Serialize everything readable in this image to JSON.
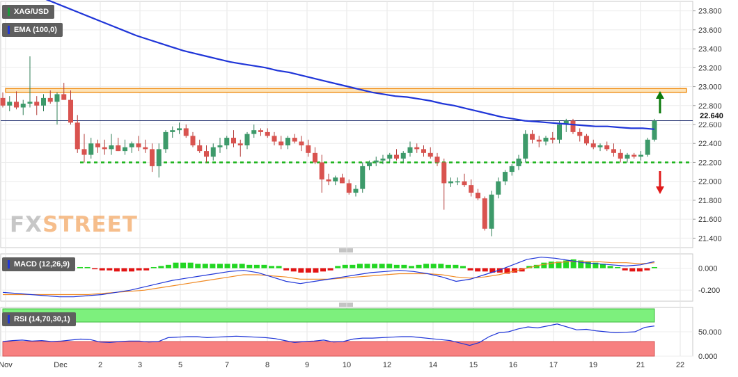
{
  "chart_data": [
    {
      "type": "candlestick",
      "symbol": "XAG/USD",
      "overlay_label": "EMA (100,0)",
      "current_price": "22.640",
      "ylim": [
        21.3,
        23.9
      ],
      "yticks": [
        "23.800",
        "23.600",
        "23.400",
        "23.200",
        "23.000",
        "22.800",
        "22.600",
        "22.400",
        "22.200",
        "22.000",
        "21.800",
        "21.600",
        "21.400"
      ],
      "x_tick_labels": [
        "Nov",
        "Dec",
        "2",
        "3",
        "5",
        "7",
        "8",
        "9",
        "10",
        "12",
        "14",
        "15",
        "16",
        "17",
        "19",
        "21",
        "22"
      ],
      "resistance_zone": [
        22.94,
        22.98
      ],
      "support_level": 22.2,
      "candles": [
        [
          22.88,
          22.94,
          22.78,
          22.8
        ],
        [
          22.8,
          22.9,
          22.74,
          22.84
        ],
        [
          22.84,
          22.95,
          22.76,
          22.78
        ],
        [
          22.78,
          22.86,
          22.7,
          22.82
        ],
        [
          22.82,
          23.32,
          22.78,
          22.84
        ],
        [
          22.84,
          22.9,
          22.7,
          22.8
        ],
        [
          22.8,
          22.92,
          22.74,
          22.88
        ],
        [
          22.88,
          22.96,
          22.82,
          22.84
        ],
        [
          22.84,
          22.94,
          22.6,
          22.92
        ],
        [
          22.92,
          23.04,
          22.86,
          22.86
        ],
        [
          22.86,
          22.96,
          22.6,
          22.62
        ],
        [
          22.62,
          22.7,
          22.3,
          22.34
        ],
        [
          22.34,
          22.5,
          22.2,
          22.28
        ],
        [
          22.28,
          22.46,
          22.24,
          22.4
        ],
        [
          22.4,
          22.44,
          22.3,
          22.36
        ],
        [
          22.36,
          22.44,
          22.28,
          22.34
        ],
        [
          22.34,
          22.5,
          22.28,
          22.38
        ],
        [
          22.38,
          22.46,
          22.32,
          22.32
        ],
        [
          22.32,
          22.44,
          22.28,
          22.36
        ],
        [
          22.36,
          22.42,
          22.3,
          22.4
        ],
        [
          22.4,
          22.48,
          22.32,
          22.36
        ],
        [
          22.36,
          22.44,
          22.3,
          22.34
        ],
        [
          22.34,
          22.4,
          22.1,
          22.16
        ],
        [
          22.16,
          22.4,
          22.04,
          22.34
        ],
        [
          22.34,
          22.54,
          22.3,
          22.52
        ],
        [
          22.52,
          22.58,
          22.46,
          22.54
        ],
        [
          22.54,
          22.62,
          22.5,
          22.56
        ],
        [
          22.56,
          22.6,
          22.46,
          22.48
        ],
        [
          22.48,
          22.52,
          22.36,
          22.38
        ],
        [
          22.38,
          22.44,
          22.3,
          22.32
        ],
        [
          22.32,
          22.38,
          22.2,
          22.26
        ],
        [
          22.26,
          22.4,
          22.22,
          22.36
        ],
        [
          22.36,
          22.46,
          22.3,
          22.38
        ],
        [
          22.38,
          22.48,
          22.34,
          22.46
        ],
        [
          22.46,
          22.54,
          22.36,
          22.4
        ],
        [
          22.4,
          22.44,
          22.26,
          22.38
        ],
        [
          22.38,
          22.52,
          22.34,
          22.5
        ],
        [
          22.5,
          22.6,
          22.46,
          22.54
        ],
        [
          22.54,
          22.56,
          22.48,
          22.52
        ],
        [
          22.52,
          22.56,
          22.46,
          22.48
        ],
        [
          22.48,
          22.52,
          22.38,
          22.42
        ],
        [
          22.42,
          22.48,
          22.34,
          22.38
        ],
        [
          22.38,
          22.48,
          22.34,
          22.46
        ],
        [
          22.46,
          22.5,
          22.4,
          22.42
        ],
        [
          22.42,
          22.48,
          22.32,
          22.38
        ],
        [
          22.38,
          22.44,
          22.26,
          22.3
        ],
        [
          22.3,
          22.36,
          22.18,
          22.2
        ],
        [
          22.2,
          22.28,
          21.88,
          22.02
        ],
        [
          22.02,
          22.08,
          21.96,
          22.0
        ],
        [
          22.0,
          22.06,
          21.96,
          22.04
        ],
        [
          22.04,
          22.08,
          21.98,
          21.98
        ],
        [
          21.98,
          22.02,
          21.86,
          21.88
        ],
        [
          21.88,
          21.96,
          21.84,
          21.92
        ],
        [
          21.92,
          22.2,
          21.88,
          22.16
        ],
        [
          22.16,
          22.22,
          22.12,
          22.2
        ],
        [
          22.2,
          22.26,
          22.16,
          22.22
        ],
        [
          22.22,
          22.28,
          22.18,
          22.24
        ],
        [
          22.24,
          22.3,
          22.2,
          22.28
        ],
        [
          22.28,
          22.34,
          22.22,
          22.24
        ],
        [
          22.24,
          22.32,
          22.2,
          22.3
        ],
        [
          22.3,
          22.42,
          22.26,
          22.36
        ],
        [
          22.36,
          22.4,
          22.3,
          22.34
        ],
        [
          22.34,
          22.38,
          22.26,
          22.3
        ],
        [
          22.3,
          22.36,
          22.24,
          22.26
        ],
        [
          22.26,
          22.3,
          22.16,
          22.2
        ],
        [
          22.2,
          22.24,
          21.7,
          21.98
        ],
        [
          21.98,
          22.04,
          21.94,
          22.0
        ],
        [
          22.0,
          22.04,
          21.96,
          22.0
        ],
        [
          22.0,
          22.08,
          21.94,
          21.96
        ],
        [
          21.96,
          22.02,
          21.84,
          21.88
        ],
        [
          21.88,
          21.92,
          21.8,
          21.82
        ],
        [
          21.82,
          21.84,
          21.48,
          21.5
        ],
        [
          21.5,
          21.9,
          21.42,
          21.86
        ],
        [
          21.86,
          22.04,
          21.82,
          22.0
        ],
        [
          22.0,
          22.12,
          21.96,
          22.1
        ],
        [
          22.1,
          22.18,
          22.06,
          22.16
        ],
        [
          22.16,
          22.28,
          22.12,
          22.24
        ],
        [
          22.24,
          22.54,
          22.2,
          22.5
        ],
        [
          22.5,
          22.54,
          22.4,
          22.44
        ],
        [
          22.44,
          22.48,
          22.36,
          22.42
        ],
        [
          22.42,
          22.48,
          22.38,
          22.46
        ],
        [
          22.46,
          22.52,
          22.4,
          22.44
        ],
        [
          22.44,
          22.64,
          22.4,
          22.6
        ],
        [
          22.6,
          22.66,
          22.52,
          22.64
        ],
        [
          22.64,
          22.66,
          22.5,
          22.52
        ],
        [
          22.52,
          22.56,
          22.42,
          22.48
        ],
        [
          22.48,
          22.5,
          22.38,
          22.4
        ],
        [
          22.4,
          22.44,
          22.34,
          22.36
        ],
        [
          22.36,
          22.4,
          22.32,
          22.38
        ],
        [
          22.38,
          22.42,
          22.32,
          22.34
        ],
        [
          22.34,
          22.4,
          22.26,
          22.3
        ],
        [
          22.3,
          22.34,
          22.2,
          22.24
        ],
        [
          22.24,
          22.3,
          22.2,
          22.28
        ],
        [
          22.28,
          22.3,
          22.24,
          22.26
        ],
        [
          22.26,
          22.32,
          22.22,
          22.28
        ],
        [
          22.28,
          22.46,
          22.26,
          22.44
        ],
        [
          22.44,
          22.66,
          22.42,
          22.64
        ]
      ],
      "ema100": [
        23.94,
        23.89,
        23.84,
        23.79,
        23.74,
        23.69,
        23.64,
        23.59,
        23.54,
        23.5,
        23.46,
        23.42,
        23.38,
        23.35,
        23.32,
        23.29,
        23.26,
        23.24,
        23.22,
        23.2,
        23.17,
        23.15,
        23.12,
        23.09,
        23.06,
        23.03,
        23.0,
        22.97,
        22.94,
        22.92,
        22.9,
        22.89,
        22.87,
        22.85,
        22.82,
        22.8,
        22.77,
        22.74,
        22.71,
        22.68,
        22.66,
        22.64,
        22.63,
        22.62,
        22.61,
        22.6,
        22.59,
        22.58,
        22.58,
        22.57,
        22.56,
        22.56,
        22.55
      ]
    },
    {
      "type": "macd",
      "label": "MACD (12,26,9)",
      "ylim": [
        -0.3,
        0.13
      ],
      "yticks": [
        "0.000",
        "-0.200"
      ],
      "macd": [
        -0.22,
        -0.23,
        -0.24,
        -0.25,
        -0.26,
        -0.26,
        -0.25,
        -0.24,
        -0.22,
        -0.2,
        -0.17,
        -0.14,
        -0.11,
        -0.09,
        -0.07,
        -0.05,
        -0.03,
        -0.02,
        -0.04,
        -0.08,
        -0.12,
        -0.14,
        -0.12,
        -0.1,
        -0.08,
        -0.06,
        -0.04,
        -0.03,
        -0.02,
        -0.03,
        -0.05,
        -0.08,
        -0.12,
        -0.1,
        -0.06,
        -0.02,
        0.03,
        0.08,
        0.1,
        0.09,
        0.07,
        0.05,
        0.04,
        0.03,
        0.02,
        0.03,
        0.06
      ],
      "signal": [
        -0.24,
        -0.24,
        -0.24,
        -0.24,
        -0.24,
        -0.24,
        -0.24,
        -0.23,
        -0.22,
        -0.21,
        -0.2,
        -0.18,
        -0.16,
        -0.14,
        -0.12,
        -0.1,
        -0.08,
        -0.06,
        -0.06,
        -0.07,
        -0.08,
        -0.1,
        -0.1,
        -0.1,
        -0.09,
        -0.08,
        -0.07,
        -0.06,
        -0.05,
        -0.05,
        -0.05,
        -0.06,
        -0.08,
        -0.09,
        -0.08,
        -0.06,
        -0.03,
        0.0,
        0.03,
        0.05,
        0.06,
        0.06,
        0.06,
        0.05,
        0.05,
        0.04,
        0.05
      ],
      "histogram": [
        0.01,
        0.01,
        -0.01,
        -0.02,
        -0.02,
        -0.03,
        -0.03,
        -0.03,
        -0.02,
        -0.02,
        0.01,
        0.02,
        0.03,
        0.05,
        0.05,
        0.05,
        0.04,
        0.04,
        0.04,
        0.04,
        0.04,
        0.04,
        0.04,
        0.03,
        0.03,
        0.03,
        0.02,
        0.02,
        -0.02,
        -0.03,
        -0.04,
        -0.04,
        -0.04,
        -0.03,
        -0.02,
        0.02,
        0.03,
        0.03,
        0.04,
        0.04,
        0.04,
        0.04,
        0.04,
        0.03,
        0.03,
        0.02,
        0.03,
        0.04,
        0.04,
        0.04,
        0.03,
        0.03,
        0.02,
        -0.02,
        -0.03,
        -0.03,
        -0.04,
        -0.04,
        -0.05,
        -0.04,
        -0.03,
        0.02,
        0.03,
        0.05,
        0.06,
        0.06,
        0.07,
        0.08,
        0.07,
        0.06,
        0.05,
        0.04,
        0.02,
        0.01,
        -0.02,
        -0.03,
        -0.03,
        -0.02,
        0.01
      ]
    },
    {
      "type": "rsi",
      "label": "RSI (14,70,30,1)",
      "ylim": [
        0,
        100
      ],
      "yticks": [
        "50.000",
        "0.000"
      ],
      "overbought": 70,
      "oversold": 30,
      "values": [
        30,
        32,
        33,
        31,
        32,
        30,
        31,
        33,
        35,
        34,
        29,
        28,
        30,
        31,
        31,
        29,
        30,
        38,
        39,
        40,
        40,
        38,
        39,
        40,
        41,
        40,
        39,
        38,
        36,
        32,
        28,
        30,
        31,
        33,
        29,
        30,
        35,
        37,
        37,
        38,
        39,
        40,
        40,
        38,
        36,
        34,
        32,
        27,
        22,
        28,
        40,
        48,
        50,
        56,
        60,
        58,
        62,
        66,
        60,
        54,
        55,
        52,
        50,
        48,
        49,
        50,
        59,
        62
      ]
    }
  ]
}
